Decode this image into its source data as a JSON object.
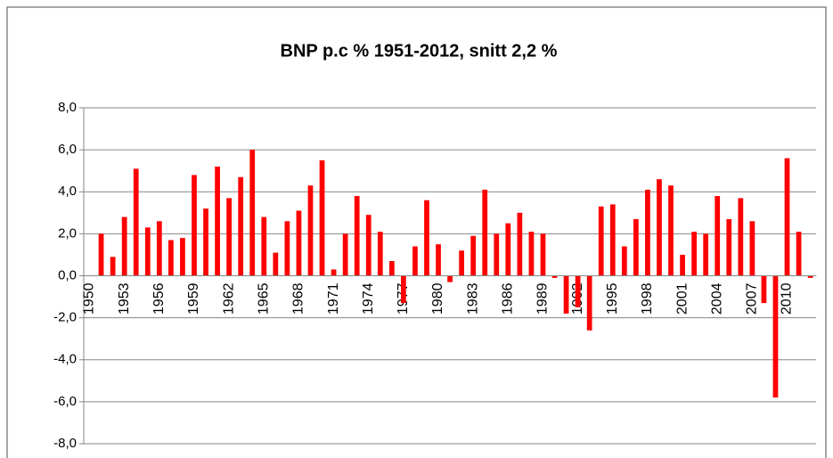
{
  "chart_data": {
    "type": "bar",
    "title": "BNP p.c % 1951-2012, snitt 2,2 %",
    "categories": [
      "1950",
      null,
      null,
      "1953",
      null,
      null,
      "1956",
      null,
      null,
      "1959",
      null,
      null,
      "1962",
      null,
      null,
      "1965",
      null,
      null,
      "1968",
      null,
      null,
      "1971",
      null,
      null,
      "1974",
      null,
      null,
      "1977",
      null,
      null,
      "1980",
      null,
      null,
      "1983",
      null,
      null,
      "1986",
      null,
      null,
      "1989",
      null,
      null,
      "1992",
      null,
      null,
      "1995",
      null,
      null,
      "1998",
      null,
      null,
      "2001",
      null,
      null,
      "2004",
      null,
      null,
      "2007",
      null,
      null,
      "2010",
      null,
      null
    ],
    "values": [
      null,
      2.0,
      0.9,
      2.8,
      5.1,
      2.3,
      2.6,
      1.7,
      1.8,
      4.8,
      3.2,
      5.2,
      3.7,
      4.7,
      6.0,
      2.8,
      1.1,
      2.6,
      3.1,
      4.3,
      5.5,
      0.3,
      2.0,
      3.8,
      2.9,
      2.1,
      0.7,
      -1.3,
      1.4,
      3.6,
      1.5,
      -0.3,
      1.2,
      1.9,
      4.1,
      2.0,
      2.5,
      3.0,
      2.1,
      2.0,
      -0.1,
      -1.8,
      -1.5,
      -2.6,
      3.3,
      3.4,
      1.4,
      2.7,
      4.1,
      4.6,
      4.3,
      1.0,
      2.1,
      2.0,
      3.8,
      2.7,
      3.7,
      2.6,
      -1.3,
      -5.8,
      5.6,
      2.1,
      -0.1
    ],
    "color": "#ff0000",
    "ylim": [
      -8,
      8
    ],
    "yticks": [
      {
        "value": -8,
        "label": "-8,0"
      },
      {
        "value": -6,
        "label": "-6,0"
      },
      {
        "value": -4,
        "label": "-4,0"
      },
      {
        "value": -2,
        "label": "-2,0"
      },
      {
        "value": 0,
        "label": "0,0"
      },
      {
        "value": 2,
        "label": "2,0"
      },
      {
        "value": 4,
        "label": "4,0"
      },
      {
        "value": 6,
        "label": "6,0"
      },
      {
        "value": 8,
        "label": "8,0"
      }
    ],
    "grid": true
  }
}
